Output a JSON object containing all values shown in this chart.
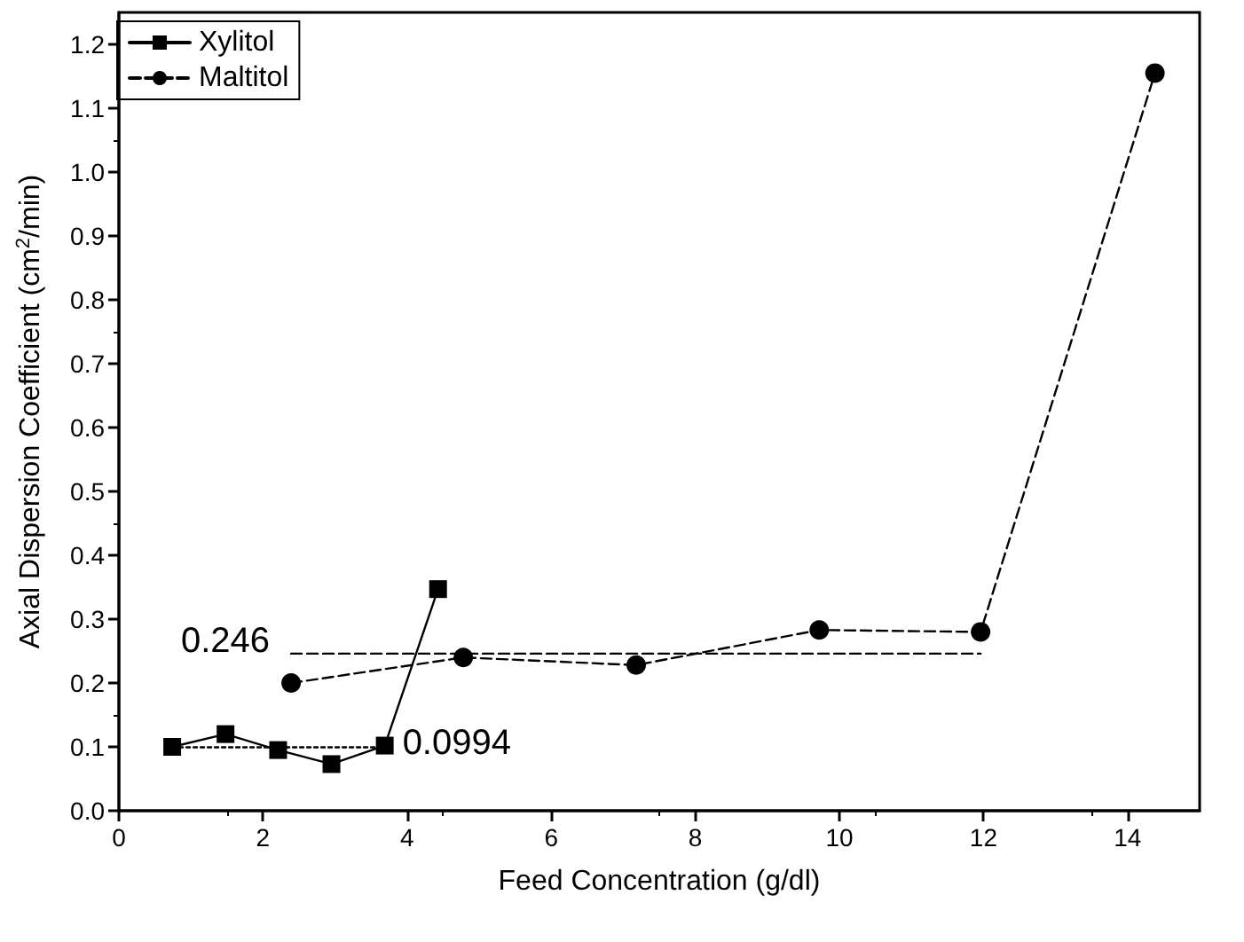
{
  "chart_data": {
    "type": "line",
    "xlabel": "Feed Concentration (g/dl)",
    "ylabel": "Axial Dispersion Coefficient (cm$^{2}$/min)",
    "xlim": [
      0,
      15
    ],
    "xticks": [
      0,
      2,
      4,
      6,
      8,
      10,
      12,
      14
    ],
    "ylim": [
      0,
      1.25
    ],
    "yticks": [
      {
        "value": 0,
        "label": "0.0"
      },
      {
        "value": 0.1,
        "label": "0.1"
      },
      {
        "value": 0.2,
        "label": "0.2"
      },
      {
        "value": 0.3,
        "label": "0.3"
      },
      {
        "value": 0.4,
        "label": "0.4"
      },
      {
        "value": 0.5,
        "label": "0.5"
      },
      {
        "value": 0.6,
        "label": "0.6"
      },
      {
        "value": 0.7,
        "label": "0.7"
      },
      {
        "value": 0.8,
        "label": "0.8"
      },
      {
        "value": 0.9,
        "label": "0.9"
      },
      {
        "value": 1,
        "label": "1.0"
      },
      {
        "value": 1.1,
        "label": "1.1"
      },
      {
        "value": 1.2,
        "label": "1.2"
      }
    ],
    "grid": false,
    "legend": "top left",
    "series": [
      {
        "name": "Xylitol",
        "color": "#000000",
        "marker": "square",
        "line_style": "solid",
        "x": [
          0.74,
          1.48,
          2.21,
          2.95,
          3.69,
          4.43
        ],
        "values": [
          0.1,
          0.12,
          0.095,
          0.073,
          0.102,
          0.347
        ]
      },
      {
        "name": "Maltitol",
        "color": "#000000",
        "marker": "circle",
        "line_style": "dashed",
        "x": [
          2.39,
          4.78,
          7.18,
          9.72,
          11.96,
          14.38
        ],
        "values": [
          0.2,
          0.24,
          0.228,
          0.283,
          0.28,
          1.155
        ]
      },
      {
        "type": "line",
        "color": "#000000",
        "marker": "none",
        "line_style": "dashed",
        "x": [
          2.39,
          11.96
        ],
        "values": [
          0.246,
          0.246
        ]
      },
      {
        "type": "line",
        "color": "#000000",
        "marker": "none",
        "line_style": "dotted",
        "x": [
          0.74,
          3.69
        ],
        "values": [
          0.0994,
          0.0994
        ]
      }
    ],
    "annotations": [
      {
        "text": "0.246",
        "x": 2.39,
        "y": 0.246
      },
      {
        "text": "0.0994",
        "x": 3.69,
        "y": 0.0994
      }
    ]
  }
}
